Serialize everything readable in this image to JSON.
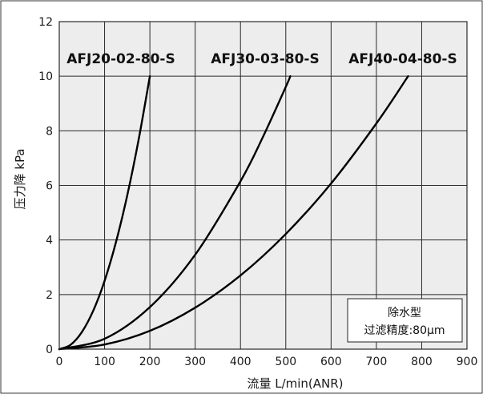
{
  "chart_data": {
    "type": "line",
    "xlabel": "流量 L/min(ANR)",
    "ylabel": "压力降 kPa",
    "xlim": [
      0,
      900
    ],
    "ylim": [
      0,
      12
    ],
    "x_ticks": [
      "0",
      "100",
      "200",
      "300",
      "400",
      "500",
      "600",
      "700",
      "800",
      "900"
    ],
    "y_ticks": [
      "0",
      "2",
      "4",
      "6",
      "8",
      "10",
      "12"
    ],
    "grid": true,
    "series": [
      {
        "name": "AFJ20-02-80-S",
        "x": [
          0,
          25,
          50,
          75,
          100,
          125,
          150,
          175,
          200
        ],
        "y": [
          0,
          0.16,
          0.63,
          1.41,
          2.5,
          3.91,
          5.63,
          7.66,
          10
        ]
      },
      {
        "name": "AFJ30-03-80-S",
        "x": [
          0,
          100,
          200,
          300,
          400,
          450,
          500,
          510
        ],
        "y": [
          0,
          0.38,
          1.54,
          3.46,
          6.15,
          7.79,
          9.61,
          10
        ]
      },
      {
        "name": "AFJ40-04-80-S",
        "x": [
          0,
          100,
          200,
          300,
          400,
          500,
          600,
          700,
          770
        ],
        "y": [
          0,
          0.17,
          0.67,
          1.52,
          2.7,
          4.22,
          6.07,
          8.27,
          10
        ]
      }
    ],
    "annotation": {
      "line1": "除水型",
      "line2": "过滤精度:80μm"
    },
    "colors": {
      "grid": "#2a2a2a",
      "plot_bg": "#ededed",
      "curve": "#000000"
    }
  }
}
